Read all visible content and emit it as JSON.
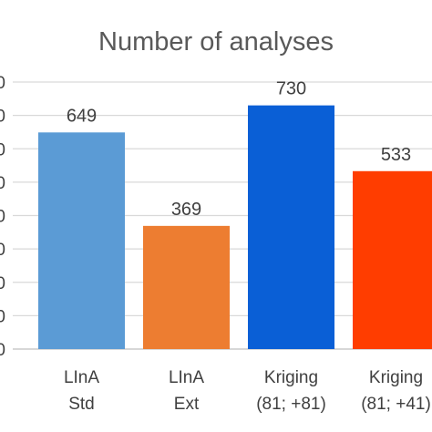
{
  "chart_data": {
    "type": "bar",
    "title": "Number of analyses",
    "categories": [
      [
        "LInA",
        "Std"
      ],
      [
        "LInA",
        "Ext"
      ],
      [
        "Kriging",
        "(81; +81)"
      ],
      [
        "Kriging",
        "(81; +41)"
      ]
    ],
    "values": [
      649,
      369,
      730,
      533
    ],
    "data_labels": [
      "649",
      "369",
      "730",
      "533"
    ],
    "colors": [
      "#5b9bd5",
      "#ed7d31",
      "#0a5fd6",
      "#ff3d00"
    ],
    "ylim": [
      0,
      800
    ],
    "yticks": [
      0,
      100,
      200,
      300,
      400,
      500,
      600,
      700,
      800
    ],
    "ytick_labels": [
      "0",
      "0",
      "0",
      "0",
      "0",
      "0",
      "0",
      "0",
      "0"
    ],
    "grid": true,
    "legend": "none"
  }
}
